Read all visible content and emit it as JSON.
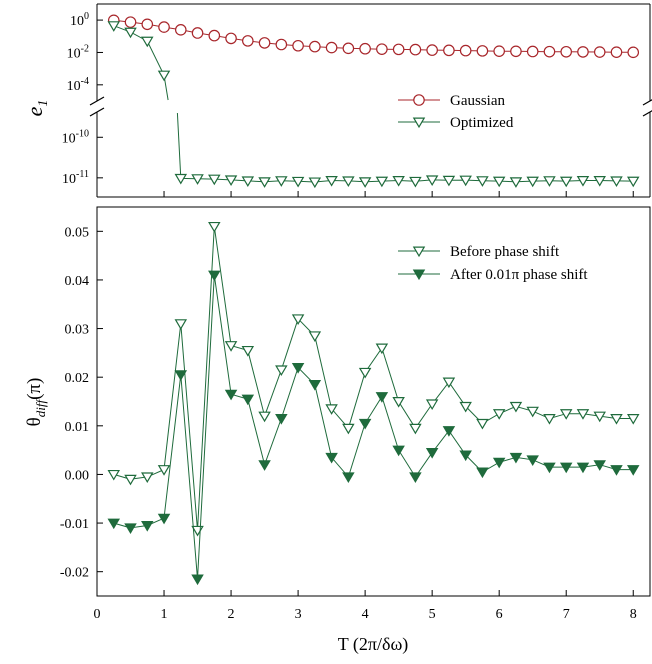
{
  "colors": {
    "gaussian": "#a8262b",
    "optimized": "#1f6b3c",
    "axis": "#000000"
  },
  "chart_data": [
    {
      "type": "line",
      "panel": "top",
      "ylabel_main": "e",
      "ylabel_sub": "1",
      "xlim": [
        0,
        8.25
      ],
      "yscale": "log",
      "y_break": [
        -5,
        -9.5
      ],
      "y_ticks": [
        {
          "exp": "0",
          "value": 1
        },
        {
          "exp": "-2",
          "value": 0.01
        },
        {
          "exp": "-4",
          "value": 0.0001
        },
        {
          "exp": "-10",
          "value": 1e-10
        },
        {
          "exp": "-11",
          "value": 1e-11
        }
      ],
      "tick_base": "10",
      "legend_position": "center-right",
      "series": [
        {
          "name": "Gaussian",
          "marker": "open-circle",
          "x": [
            0.25,
            0.5,
            0.75,
            1,
            1.25,
            1.5,
            1.75,
            2,
            2.25,
            2.5,
            2.75,
            3,
            3.25,
            3.5,
            3.75,
            4,
            4.25,
            4.5,
            4.75,
            5,
            5.25,
            5.5,
            5.75,
            6,
            6.25,
            6.5,
            6.75,
            7,
            7.25,
            7.5,
            7.75,
            8
          ],
          "y": [
            0.97,
            0.75,
            0.55,
            0.37,
            0.25,
            0.16,
            0.11,
            0.074,
            0.052,
            0.039,
            0.031,
            0.026,
            0.023,
            0.02,
            0.018,
            0.017,
            0.016,
            0.0155,
            0.015,
            0.014,
            0.0135,
            0.013,
            0.0125,
            0.012,
            0.0118,
            0.0115,
            0.0112,
            0.011,
            0.0108,
            0.0106,
            0.0104,
            0.0102
          ]
        },
        {
          "name": "Optimized",
          "marker": "open-triangle-down",
          "x": [
            0.25,
            0.5,
            0.75,
            1,
            1.25,
            1.5,
            1.75,
            2,
            2.25,
            2.5,
            2.75,
            3,
            3.25,
            3.5,
            3.75,
            4,
            4.25,
            4.5,
            4.75,
            5,
            5.25,
            5.5,
            5.75,
            6,
            6.25,
            6.5,
            6.75,
            7,
            7.25,
            7.5,
            7.75,
            8
          ],
          "y": [
            0.45,
            0.18,
            0.05,
            0.0004,
            9.7e-12,
            9.5e-12,
            9.3e-12,
            8.9e-12,
            8.4e-12,
            8e-12,
            8.5e-12,
            8.2e-12,
            7.9e-12,
            8.6e-12,
            8.4e-12,
            8e-12,
            8.3e-12,
            8.6e-12,
            8.2e-12,
            8.9e-12,
            8.7e-12,
            8.8e-12,
            8.5e-12,
            8.3e-12,
            8e-12,
            8.3e-12,
            8.5e-12,
            8.3e-12,
            8.6e-12,
            8.6e-12,
            8.4e-12,
            8.3e-12
          ]
        }
      ]
    },
    {
      "type": "line",
      "panel": "bottom",
      "xlabel": "T (2π/δω)",
      "ylabel_main": "θ",
      "ylabel_sub": "diff",
      "ylabel_unit": "(π)",
      "xlim": [
        0,
        8.25
      ],
      "ylim": [
        -0.025,
        0.055
      ],
      "x_ticks": [
        "0",
        "1",
        "2",
        "3",
        "4",
        "5",
        "6",
        "7",
        "8"
      ],
      "y_ticks": [
        "-0.02",
        "-0.01",
        "0.00",
        "0.01",
        "0.02",
        "0.03",
        "0.04",
        "0.05"
      ],
      "legend_position": "top-right",
      "series": [
        {
          "name": "Before phase shift",
          "marker": "open-triangle-down",
          "x": [
            0.25,
            0.5,
            0.75,
            1,
            1.25,
            1.5,
            1.75,
            2,
            2.25,
            2.5,
            2.75,
            3,
            3.25,
            3.5,
            3.75,
            4,
            4.25,
            4.5,
            4.75,
            5,
            5.25,
            5.5,
            5.75,
            6,
            6.25,
            6.5,
            6.75,
            7,
            7.25,
            7.5,
            7.75,
            8
          ],
          "y": [
            0.0,
            -0.001,
            -0.0005,
            0.001,
            0.031,
            -0.0115,
            0.051,
            0.0265,
            0.0255,
            0.012,
            0.0215,
            0.032,
            0.0285,
            0.0135,
            0.0095,
            0.021,
            0.026,
            0.015,
            0.0095,
            0.0145,
            0.019,
            0.014,
            0.0105,
            0.0125,
            0.014,
            0.013,
            0.0115,
            0.0125,
            0.0125,
            0.012,
            0.0115,
            0.0115
          ]
        },
        {
          "name": "After 0.01π phase shift",
          "marker": "filled-triangle-down",
          "x": [
            0.25,
            0.5,
            0.75,
            1,
            1.25,
            1.5,
            1.75,
            2,
            2.25,
            2.5,
            2.75,
            3,
            3.25,
            3.5,
            3.75,
            4,
            4.25,
            4.5,
            4.75,
            5,
            5.25,
            5.5,
            5.75,
            6,
            6.25,
            6.5,
            6.75,
            7,
            7.25,
            7.5,
            7.75,
            8
          ],
          "y": [
            -0.01,
            -0.011,
            -0.0105,
            -0.009,
            0.0205,
            -0.0215,
            0.041,
            0.0165,
            0.0155,
            0.002,
            0.0115,
            0.022,
            0.0185,
            0.0035,
            -0.0005,
            0.0105,
            0.016,
            0.005,
            -0.0005,
            0.0045,
            0.009,
            0.004,
            0.0005,
            0.0025,
            0.0035,
            0.003,
            0.0015,
            0.0015,
            0.0015,
            0.002,
            0.001,
            0.001
          ]
        }
      ]
    }
  ]
}
